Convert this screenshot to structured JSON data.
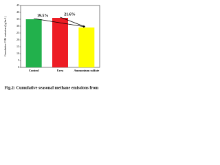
{
  "chart_data": {
    "type": "bar",
    "caption": "Fig.2: Cumulative seasonal methane emissions from",
    "y_label": "Cumulative CH4 emission (kg ha-1)",
    "annotations": [
      "19.5%",
      "21.6%"
    ],
    "categories": [
      "Control",
      "Urea",
      "Ammonium sulfate"
    ],
    "values": [
      35,
      36,
      29
    ],
    "colors": [
      "#22b14c",
      "#ed1c24",
      "#ffff00"
    ],
    "ylim": [
      0,
      45
    ],
    "yticks": [
      0,
      5,
      10,
      15,
      20,
      25,
      30,
      35,
      40,
      45
    ]
  }
}
